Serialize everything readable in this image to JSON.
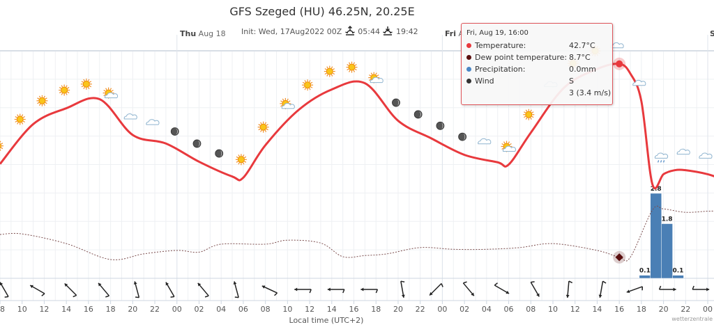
{
  "header": {
    "title": "GFS Szeged (HU) 46.25N, 20.25E",
    "init": "Init: Wed, 17Aug2022 00Z",
    "sunrise": "05:44",
    "sunset": "19:42",
    "sunrise_icon": "sunrise-icon",
    "sunset_icon": "sunset-icon"
  },
  "days": [
    {
      "dow": "Thu",
      "date": "Aug 18"
    },
    {
      "dow": "Fri",
      "date": "A"
    },
    {
      "dow": "S",
      "date": ""
    }
  ],
  "tooltip": {
    "header": "Fri, Aug 19, 16:00",
    "rows": [
      {
        "label": "Temperature:",
        "value": "42.7°C",
        "color": "#e8393d"
      },
      {
        "label": "Dew point temperature:",
        "value": "8.7°C",
        "color": "#5a0f0f"
      },
      {
        "label": "Precipitation:",
        "value": "0.0mm",
        "color": "#4a86c5"
      },
      {
        "label": "Wind",
        "value": "S",
        "color": "#333333"
      }
    ],
    "wind_speed": "3 (3.4 m/s)"
  },
  "chart_data": {
    "type": "line",
    "xlabel": "Local time (UTC+2)",
    "credit": "wetterzentrale",
    "grid": true,
    "x_tick_labels": [
      "08",
      "10",
      "12",
      "14",
      "16",
      "18",
      "20",
      "22",
      "00",
      "02",
      "04",
      "06",
      "08",
      "10",
      "12",
      "14",
      "16",
      "18",
      "20",
      "22",
      "00",
      "02",
      "04",
      "06",
      "08",
      "10",
      "12",
      "14",
      "16",
      "18",
      "20",
      "22",
      "00"
    ],
    "colors": {
      "temperature": "#e8393d",
      "dewpoint": "#7a4b4b",
      "precipitation": "#4a7fb5"
    },
    "series": [
      {
        "name": "Temperature",
        "unit": "°C",
        "points": [
          [
            "17 08:00",
            25.1
          ],
          [
            "17 11:00",
            32.1
          ],
          [
            "17 14:00",
            34.9
          ],
          [
            "17 17:00",
            36.5
          ],
          [
            "17 20:00",
            30.2
          ],
          [
            "17 23:00",
            28.7
          ],
          [
            "18 02:00",
            25.5
          ],
          [
            "18 05:00",
            22.9
          ],
          [
            "18 06:00",
            22.7
          ],
          [
            "18 08:00",
            28.4
          ],
          [
            "18 11:00",
            34.6
          ],
          [
            "18 14:00",
            38.2
          ],
          [
            "18 17:00",
            39.3
          ],
          [
            "18 20:00",
            32.7
          ],
          [
            "18 23:00",
            29.6
          ],
          [
            "19 02:00",
            26.7
          ],
          [
            "19 05:00",
            25.4
          ],
          [
            "19 06:00",
            25.0
          ],
          [
            "19 08:00",
            30.6
          ],
          [
            "19 11:00",
            38.5
          ],
          [
            "19 14:00",
            41.8
          ],
          [
            "19 16:00",
            42.7
          ],
          [
            "19 17:00",
            41.0
          ],
          [
            "19 18:00",
            36.1
          ],
          [
            "19 19:00",
            21.5
          ],
          [
            "19 20:00",
            23.3
          ],
          [
            "19 21:00",
            24.0
          ],
          [
            "19 22:00",
            24.0
          ],
          [
            "20 00:00",
            23.3
          ],
          [
            "20 01:00",
            22.6
          ]
        ]
      },
      {
        "name": "Dew point temperature",
        "unit": "°C",
        "points": [
          [
            "17 08:00",
            12.7
          ],
          [
            "17 10:00",
            12.8
          ],
          [
            "17 14:00",
            11.1
          ],
          [
            "17 18:00",
            8.3
          ],
          [
            "17 21:00",
            9.3
          ],
          [
            "18 00:00",
            9.9
          ],
          [
            "18 02:00",
            9.6
          ],
          [
            "18 04:00",
            11.0
          ],
          [
            "18 08:00",
            11.0
          ],
          [
            "18 10:00",
            11.7
          ],
          [
            "18 13:00",
            11.2
          ],
          [
            "18 15:00",
            8.8
          ],
          [
            "18 17:00",
            9.0
          ],
          [
            "18 19:00",
            9.3
          ],
          [
            "18 22:00",
            10.4
          ],
          [
            "19 01:00",
            10.1
          ],
          [
            "19 04:00",
            10.1
          ],
          [
            "19 07:00",
            10.4
          ],
          [
            "19 10:00",
            11.1
          ],
          [
            "19 14:00",
            9.9
          ],
          [
            "19 16:00",
            8.7
          ],
          [
            "19 17:00",
            8.7
          ],
          [
            "19 19:00",
            17.0
          ],
          [
            "19 20:00",
            17.2
          ],
          [
            "19 22:00",
            16.6
          ],
          [
            "20 00:00",
            16.8
          ],
          [
            "20 01:00",
            16.8
          ]
        ]
      },
      {
        "name": "Precipitation",
        "unit": "mm",
        "type": "bar",
        "points": [
          [
            "19 18:00",
            0.1
          ],
          [
            "19 19:00",
            2.8
          ],
          [
            "19 20:00",
            1.8
          ],
          [
            "19 21:00",
            0.1
          ]
        ]
      }
    ],
    "temperature_range": [
      5,
      45
    ],
    "precipitation_range": [
      0,
      7.5
    ],
    "highlight": {
      "time": "19 16:00"
    },
    "weather_icons": [
      "sun",
      "sun",
      "sun",
      "sun",
      "sun",
      "sun-cloud",
      "cloud",
      "cloud",
      "moon",
      "moon",
      "moon",
      "sun",
      "sun",
      "sun-cloud",
      "sun",
      "sun",
      "sun",
      "sun-cloud",
      "moon",
      "moon",
      "moon",
      "moon",
      "cloud",
      "sun-cloud",
      "sun",
      "cloud",
      "sun",
      "sun",
      "cloud",
      "cloud",
      "rain-cloud",
      "cloud",
      "cloud"
    ],
    "wind_directions_deg": [
      150,
      120,
      135,
      140,
      165,
      150,
      140,
      165,
      115,
      90,
      90,
      90,
      350,
      45,
      320,
      300,
      330,
      5,
      10,
      70,
      270,
      270
    ]
  }
}
